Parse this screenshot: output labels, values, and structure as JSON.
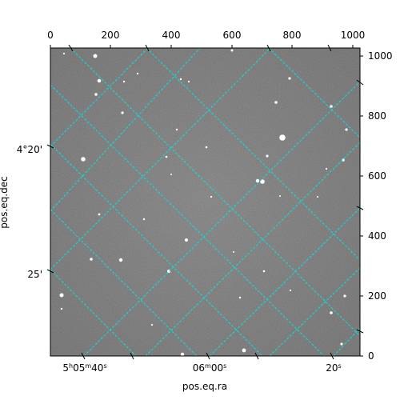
{
  "figure": {
    "xlabel": "pos.eq.ra",
    "ylabel": "pos.eq.dec",
    "pixel_x_ticks": [
      "0",
      "200",
      "400",
      "600",
      "800",
      "1000"
    ],
    "pixel_y_ticks": [
      "0",
      "200",
      "400",
      "600",
      "800",
      "1000"
    ],
    "ra_ticks": [
      {
        "main": "5",
        "sup1": "h",
        "mid": "05",
        "sup2": "m",
        "end": "40",
        "sup3": "s"
      },
      {
        "main": "06",
        "sup1": "m",
        "mid": "00",
        "sup2": "s",
        "end": "",
        "sup3": ""
      },
      {
        "main": "20",
        "sup1": "s",
        "mid": "",
        "sup2": "",
        "end": "",
        "sup3": ""
      }
    ],
    "dec_ticks": [
      "4°20'",
      "25'"
    ],
    "grid_color": "#00e5e5",
    "image_background": "#7d7d7d"
  }
}
